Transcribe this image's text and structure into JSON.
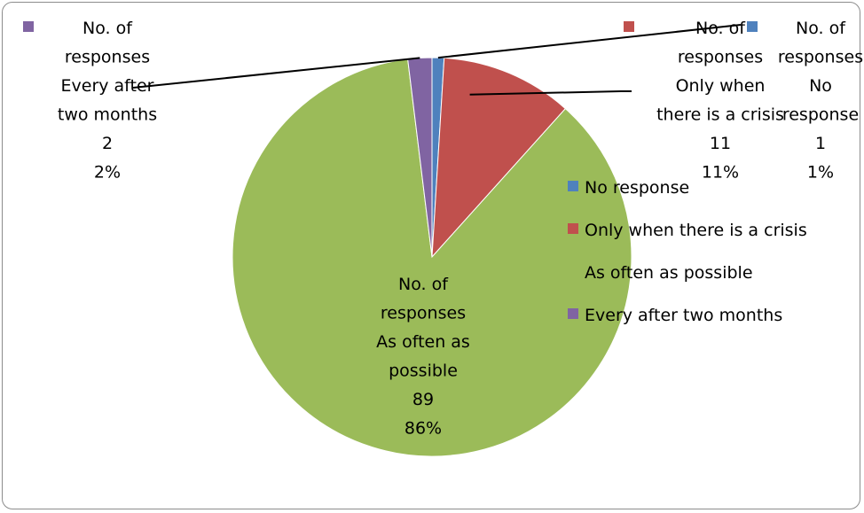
{
  "chart_data": {
    "type": "pie",
    "slices": [
      {
        "name": "No response",
        "value": 1,
        "percent": "1%",
        "color": "#4f81bd"
      },
      {
        "name": "Only when there is a crisis",
        "value": 11,
        "percent": "11%",
        "color": "#c0504d"
      },
      {
        "name": "As often as possible",
        "value": 89,
        "percent": "86%",
        "color": "#9bbb59"
      },
      {
        "name": "Every after two months",
        "value": 2,
        "percent": "2%",
        "color": "#8064a2"
      }
    ],
    "data_labels": [
      {
        "lines": [
          "No. of",
          "responses",
          "No",
          "response",
          "1",
          "1%"
        ]
      },
      {
        "lines": [
          "No. of",
          "responses",
          "Only when",
          "there is a crisis",
          "11",
          "11%"
        ]
      },
      {
        "lines": [
          "No. of",
          "responses",
          "As often as",
          "possible",
          "89",
          "86%"
        ]
      },
      {
        "lines": [
          "No. of",
          "responses",
          "Every after",
          "two months",
          "2",
          "2%"
        ]
      }
    ],
    "legend": {
      "placement": "right",
      "entries": [
        "No response",
        "Only when there is a crisis",
        "As often as possible",
        "Every after two months"
      ]
    }
  }
}
